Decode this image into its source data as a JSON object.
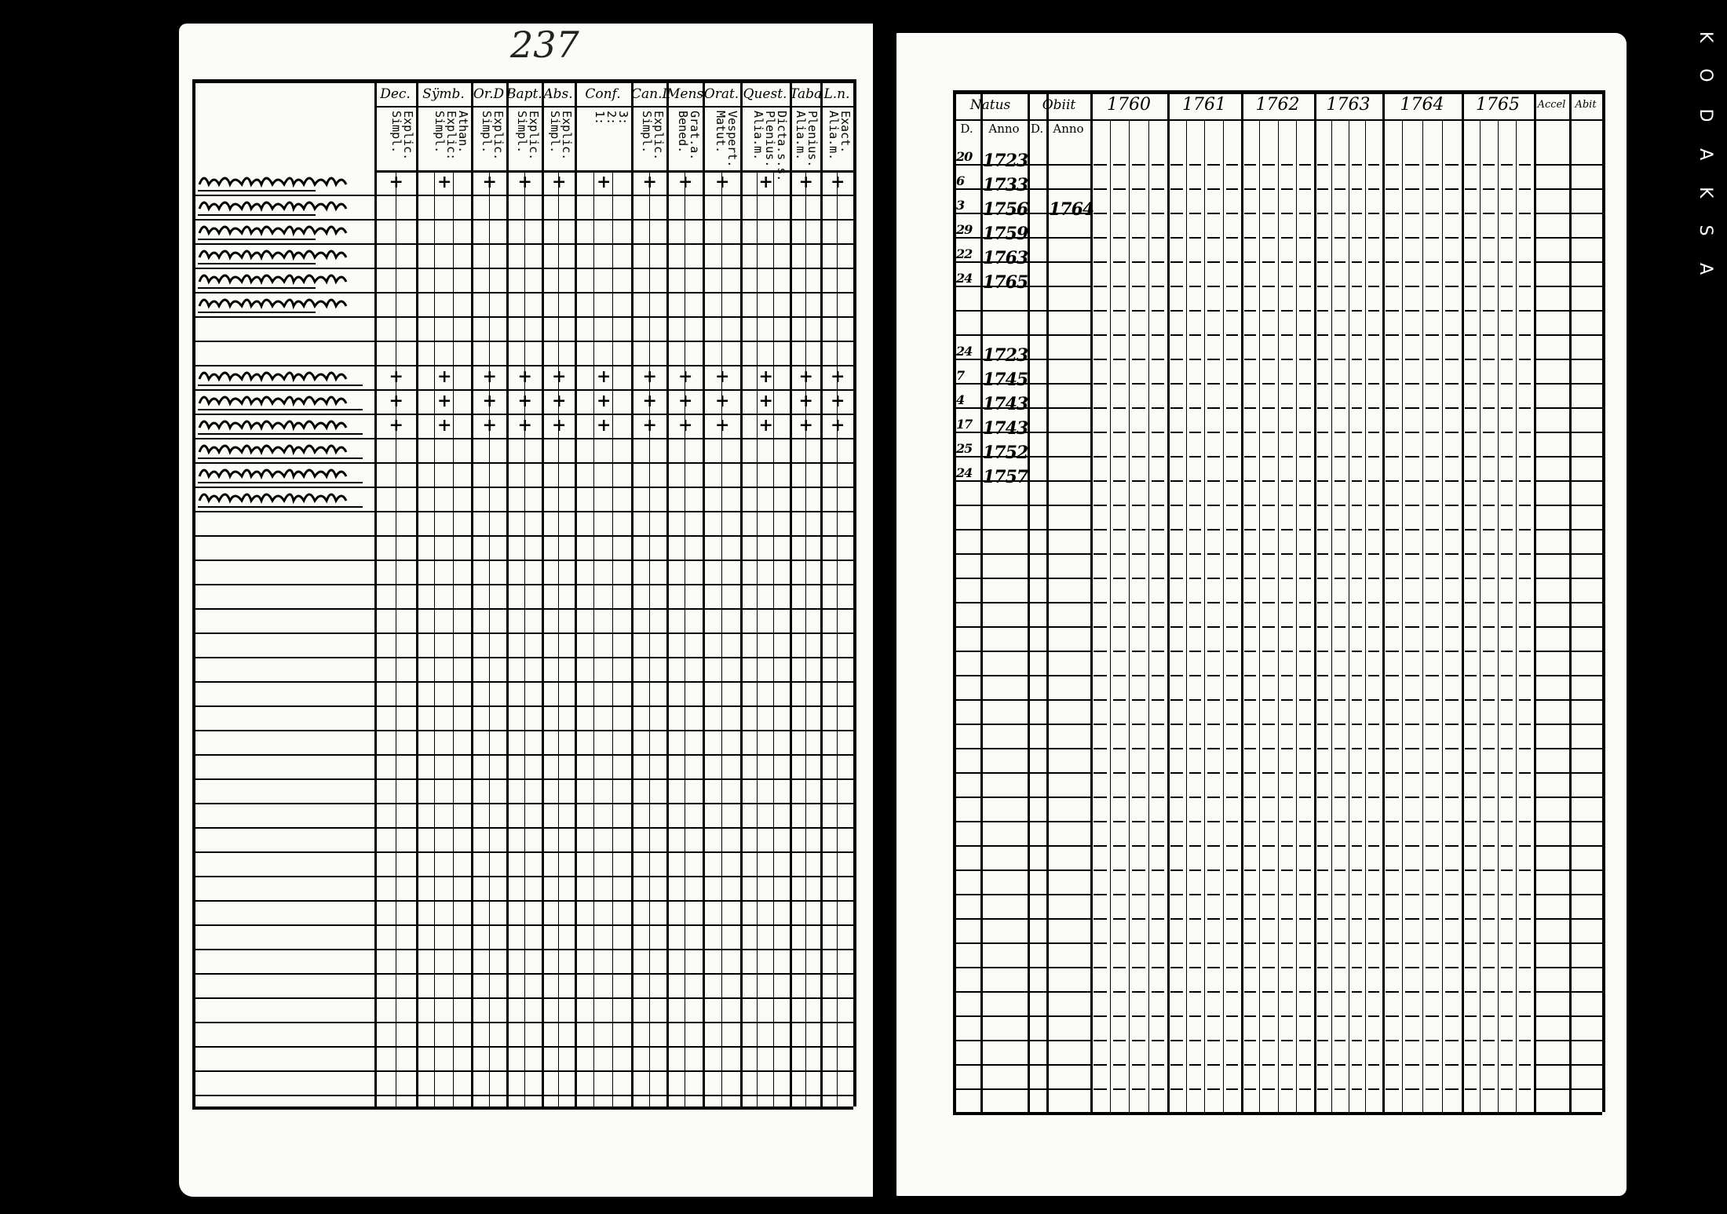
{
  "page_number": "237",
  "edge_text": "KODAKSA",
  "left_table": {
    "columns": [
      {
        "top": "Dec.",
        "sub": "Explic.\nSimpl."
      },
      {
        "top": "Sÿmb.",
        "sub": "Athan.\nExplic:\nSimpl."
      },
      {
        "top": "Or.D",
        "sub": "Explic.\nSimpl."
      },
      {
        "top": "Bapt.",
        "sub": "Explic.\nSimpl."
      },
      {
        "top": "Abs.",
        "sub": "Explic.\nSimpl."
      },
      {
        "top": "Conf.",
        "sub": "3:\n2:\n1:"
      },
      {
        "top": "Can.D",
        "sub": "Explic.\nSimpl."
      },
      {
        "top": "Mens.",
        "sub": "Grat.a.\nBened."
      },
      {
        "top": "Orat.",
        "sub": "Vespert.\nMatut."
      },
      {
        "top": "Quest.",
        "sub": "Dicta.s.s.\nPlenius.\nAlia.m."
      },
      {
        "top": "Taba",
        "sub": "Plenius.\nAlia.m."
      },
      {
        "top": "L.n.",
        "sub": "Exact.\nAlia.m."
      }
    ]
  },
  "right_table": {
    "natus": "Natus",
    "obiit": "Obiit",
    "day": "D.",
    "anno": "Anno",
    "years": [
      "1760",
      "1761",
      "1762",
      "1763",
      "1764",
      "1765"
    ],
    "accel": "Accel",
    "abit": "Abit",
    "births": [
      {
        "day": "20",
        "year": "1723"
      },
      {
        "day": "6",
        "year": "1733"
      },
      {
        "day": "3",
        "year": "1756"
      },
      {
        "day": "29",
        "year": "1759"
      },
      {
        "day": "22",
        "year": "1763"
      },
      {
        "day": "24",
        "year": "1765"
      },
      {
        "day": "24",
        "year": "1723"
      },
      {
        "day": "7",
        "year": "1745"
      },
      {
        "day": "4",
        "year": "1743"
      },
      {
        "day": "17",
        "year": "1743"
      },
      {
        "day": "25",
        "year": "1752"
      },
      {
        "day": "24",
        "year": "1757"
      }
    ],
    "death_year": "1764"
  }
}
